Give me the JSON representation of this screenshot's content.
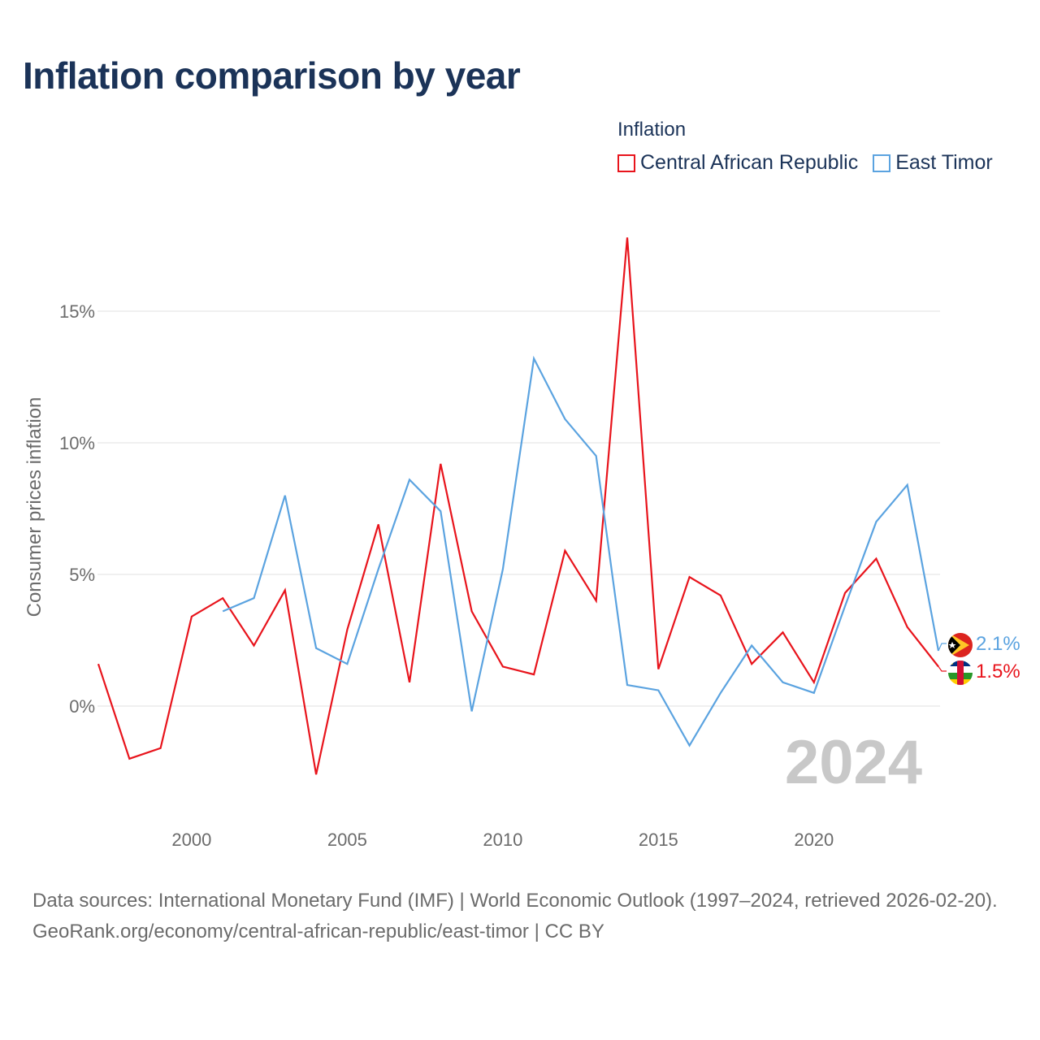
{
  "title": "Inflation comparison by year",
  "legend": {
    "title": "Inflation",
    "items": [
      {
        "label": "Central African Republic",
        "color": "#e8141c"
      },
      {
        "label": "East Timor",
        "color": "#5ba3e0"
      }
    ]
  },
  "year_watermark": "2024",
  "footer": {
    "sources": "Data sources: International Monetary Fund (IMF) | World Economic Outlook (1997–2024, retrieved 2026-02-20).",
    "credit": "GeoRank.org/economy/central-african-republic/east-timor | CC BY"
  },
  "chart_data": {
    "type": "line",
    "title": "Inflation comparison by year",
    "xlabel": "",
    "ylabel": "Consumer prices inflation",
    "xlim": [
      1997,
      2024
    ],
    "ylim": [
      -4,
      18.5
    ],
    "y_ticks": [
      {
        "value": 0,
        "label": "0%"
      },
      {
        "value": 5,
        "label": "5%"
      },
      {
        "value": 10,
        "label": "10%"
      },
      {
        "value": 15,
        "label": "15%"
      }
    ],
    "x_ticks": [
      {
        "value": 2000,
        "label": "2000"
      },
      {
        "value": 2005,
        "label": "2005"
      },
      {
        "value": 2010,
        "label": "2010"
      },
      {
        "value": 2015,
        "label": "2015"
      },
      {
        "value": 2020,
        "label": "2020"
      }
    ],
    "grid": true,
    "series": [
      {
        "name": "Central African Republic",
        "color": "#e8141c",
        "end_label": "1.5%",
        "x": [
          1997,
          1998,
          1999,
          2000,
          2001,
          2002,
          2003,
          2004,
          2005,
          2006,
          2007,
          2008,
          2009,
          2010,
          2011,
          2012,
          2013,
          2014,
          2015,
          2016,
          2017,
          2018,
          2019,
          2020,
          2021,
          2022,
          2023,
          2024
        ],
        "values": [
          1.6,
          -2.0,
          -1.6,
          3.4,
          4.1,
          2.3,
          4.4,
          -2.6,
          2.9,
          6.9,
          0.9,
          9.2,
          3.6,
          1.5,
          1.2,
          5.9,
          4.0,
          17.8,
          1.4,
          4.9,
          4.2,
          1.6,
          2.8,
          0.9,
          4.3,
          5.6,
          3.0,
          1.5
        ]
      },
      {
        "name": "East Timor",
        "color": "#5ba3e0",
        "end_label": "2.1%",
        "x": [
          2001,
          2002,
          2003,
          2004,
          2005,
          2006,
          2007,
          2008,
          2009,
          2010,
          2011,
          2012,
          2013,
          2014,
          2015,
          2016,
          2017,
          2018,
          2019,
          2020,
          2021,
          2022,
          2023,
          2024
        ],
        "values": [
          3.6,
          4.1,
          8.0,
          2.2,
          1.6,
          5.2,
          8.6,
          7.4,
          -0.2,
          5.2,
          13.2,
          10.9,
          9.5,
          0.8,
          0.6,
          -1.5,
          0.5,
          2.3,
          0.9,
          0.5,
          3.8,
          7.0,
          8.4,
          2.1
        ]
      }
    ]
  }
}
